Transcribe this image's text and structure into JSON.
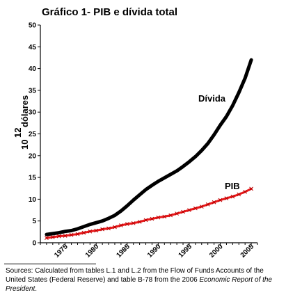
{
  "chart_data": {
    "type": "line",
    "title": "Gráfico 1-  PIB e dívida total",
    "ylabel_power": "10",
    "ylabel_exponent": "12",
    "ylabel_unit": "dólares",
    "xlabel": "",
    "xlim": [
      1971,
      2006
    ],
    "ylim": [
      0,
      50
    ],
    "yticks": [
      "0",
      "5",
      "10",
      "15",
      "20",
      "25",
      "30",
      "35",
      "40",
      "45",
      "50"
    ],
    "xticks": [
      "1975",
      "1980",
      "1985",
      "1990",
      "1995",
      "2000",
      "2005"
    ],
    "grid": false,
    "x": [
      1972,
      1973,
      1974,
      1975,
      1976,
      1977,
      1978,
      1979,
      1980,
      1981,
      1982,
      1983,
      1984,
      1985,
      1986,
      1987,
      1988,
      1989,
      1990,
      1991,
      1992,
      1993,
      1994,
      1995,
      1996,
      1997,
      1998,
      1999,
      2000,
      2001,
      2002,
      2003,
      2004,
      2005
    ],
    "series": [
      {
        "name": "Dívida",
        "color": "#000000",
        "values": [
          1.9,
          2.1,
          2.3,
          2.6,
          2.8,
          3.2,
          3.7,
          4.2,
          4.6,
          5.0,
          5.6,
          6.3,
          7.3,
          8.5,
          9.8,
          11.0,
          12.2,
          13.2,
          14.1,
          14.9,
          15.7,
          16.5,
          17.5,
          18.6,
          19.8,
          21.2,
          22.8,
          24.8,
          27.0,
          29.0,
          31.5,
          34.5,
          37.8,
          42.0
        ]
      },
      {
        "name": "PIB",
        "color": "#e8181a",
        "values": [
          1.1,
          1.3,
          1.5,
          1.6,
          1.8,
          2.0,
          2.3,
          2.6,
          2.8,
          3.1,
          3.3,
          3.6,
          4.0,
          4.3,
          4.5,
          4.8,
          5.2,
          5.5,
          5.8,
          6.0,
          6.3,
          6.7,
          7.1,
          7.5,
          7.9,
          8.3,
          8.8,
          9.3,
          9.8,
          10.2,
          10.6,
          11.1,
          11.7,
          12.4
        ]
      }
    ],
    "annotations": [
      "Dívida",
      "PIB"
    ]
  },
  "source": {
    "text": "Sources: Calculated from tables L.1 and L.2 from the Flow of Funds Accounts of the United States (Federal Reserve) and table B-78 from the 2006 ",
    "italic": "Economic Report of the President",
    "end": "."
  }
}
